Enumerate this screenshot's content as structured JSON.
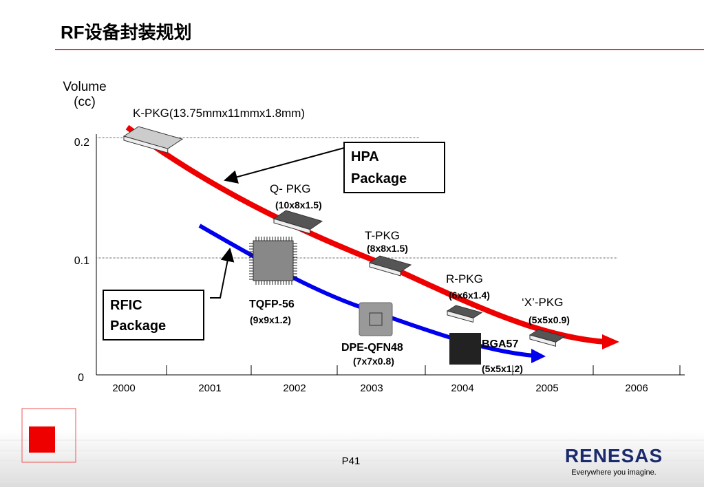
{
  "header": {
    "title": "RF设备封装规划"
  },
  "axis": {
    "y_label_1": "Volume",
    "y_label_2": "(cc)",
    "yticks": [
      "0.2",
      "0.1",
      "0"
    ],
    "xticks": [
      "2000",
      "2001",
      "2002",
      "2003",
      "2004",
      "2005",
      "2006"
    ]
  },
  "boxes": {
    "hpa": [
      "HPA",
      "Package"
    ],
    "rfic": [
      "RFIC",
      "Package"
    ]
  },
  "packages": [
    {
      "name": "K-PKG(13.75mmx11mmx1.8mm)"
    },
    {
      "name": "Q- PKG",
      "size": "(10x8x1.5)"
    },
    {
      "name": "T-PKG",
      "size": "(8x8x1.5)"
    },
    {
      "name": "R-PKG",
      "size": "(6x6x1.4)"
    },
    {
      "name": "‘X’-PKG",
      "size": "(5x5x0.9)"
    },
    {
      "name": "TQFP-56",
      "size": "(9x9x1.2)"
    },
    {
      "name": "DPE-QFN48",
      "size": "(7x7x0.8)"
    },
    {
      "name": "BGA57",
      "size": "(5x5x1.2)"
    }
  ],
  "footer": {
    "page": "P41",
    "logo": "RENESAS",
    "slogan": "Everywhere you imagine."
  }
}
